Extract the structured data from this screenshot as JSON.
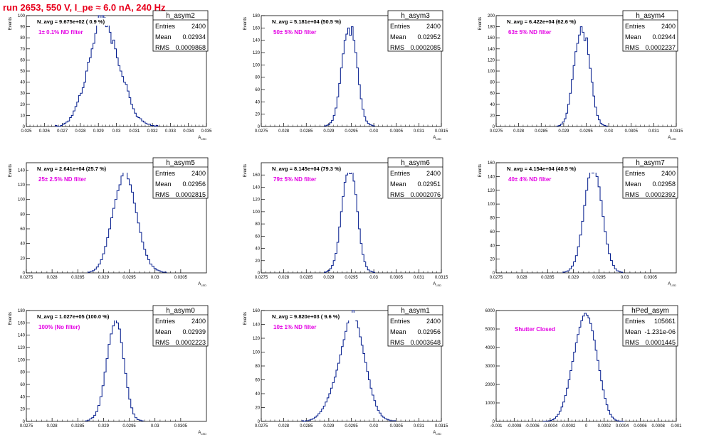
{
  "page": {
    "title": "run 2653,   550 V, I_pe ≈ 6.0 nA, 240 Hz"
  },
  "colors": {
    "title": "#e8001c",
    "annotation": "#e400e4",
    "hist_line": "#001a8c",
    "axis": "#000000"
  },
  "stats_labels": {
    "entries": "Entries",
    "mean": "Mean",
    "rms": "RMS"
  },
  "chart_data": [
    {
      "type": "bar",
      "name": "h_asym2",
      "navg": "N_avg = 9.675e+02 ( 0.9 %)",
      "annotation": "1± 0.1% ND filter",
      "entries": "2400",
      "mean": "0.02934",
      "rms": "0.0009868",
      "xlim": [
        0.025,
        0.035
      ],
      "ylim": [
        0,
        100
      ],
      "xlabel": "A_LED",
      "ylabel": "Events",
      "xticks": [
        0.025,
        0.026,
        0.027,
        0.028,
        0.029,
        0.03,
        0.031,
        0.032,
        0.033,
        0.034,
        0.035
      ],
      "xtick_labels": [
        "0.025",
        "0.026",
        "0.027",
        "0.028",
        "0.029",
        "0.03",
        "0.031",
        "0.032",
        "0.033",
        "0.034",
        "0.035"
      ],
      "yticks": [
        0,
        10,
        20,
        30,
        40,
        50,
        60,
        70,
        80,
        90,
        100
      ],
      "ytick_labels": [
        "0",
        "10",
        "20",
        "30",
        "40",
        "50",
        "60",
        "70",
        "80",
        "90",
        "100"
      ],
      "bins": {
        "start": 0.0266,
        "width": 0.0001,
        "values": [
          1,
          0,
          0,
          1,
          2,
          3,
          4,
          5,
          8,
          10,
          14,
          18,
          22,
          28,
          30,
          35,
          40,
          50,
          58,
          62,
          70,
          75,
          84,
          92,
          100,
          95,
          100,
          98,
          90,
          94,
          85,
          75,
          78,
          70,
          62,
          55,
          50,
          45,
          40,
          38,
          32,
          26,
          20,
          16,
          12,
          9,
          8,
          7,
          5,
          4,
          3,
          2,
          2,
          1,
          1,
          0,
          1
        ]
      }
    },
    {
      "type": "bar",
      "name": "h_asym3",
      "navg": "N_avg = 5.181e+04 (50.5 %)",
      "annotation": "50± 5% ND filter",
      "entries": "2400",
      "mean": "0.02952",
      "rms": "0.0002085",
      "xlim": [
        0.0275,
        0.0315
      ],
      "ylim": [
        0,
        180
      ],
      "xlabel": "A_LED",
      "ylabel": "Events",
      "xticks": [
        0.0275,
        0.028,
        0.0285,
        0.029,
        0.0295,
        0.03,
        0.0305,
        0.031,
        0.0315
      ],
      "xtick_labels": [
        "0.0275",
        "0.028",
        "0.0285",
        "0.029",
        "0.0295",
        "0.03",
        "0.0305",
        "0.031",
        "0.0315"
      ],
      "yticks": [
        0,
        20,
        40,
        60,
        80,
        100,
        120,
        140,
        160,
        180
      ],
      "ytick_labels": [
        "0",
        "20",
        "40",
        "60",
        "80",
        "100",
        "120",
        "140",
        "160",
        "180"
      ],
      "bins": {
        "start": 0.0289,
        "width": 4e-05,
        "values": [
          1,
          2,
          3,
          6,
          10,
          18,
          30,
          48,
          70,
          95,
          118,
          140,
          150,
          160,
          148,
          162,
          140,
          120,
          95,
          68,
          45,
          28,
          16,
          9,
          5,
          3,
          2,
          1
        ]
      }
    },
    {
      "type": "bar",
      "name": "h_asym4",
      "navg": "N_avg = 6.422e+04 (62.6 %)",
      "annotation": "63± 5% ND filter",
      "entries": "2400",
      "mean": "0.02944",
      "rms": "0.0002237",
      "xlim": [
        0.0275,
        0.0315
      ],
      "ylim": [
        0,
        200
      ],
      "xlabel": "A_LED",
      "ylabel": "Events",
      "xticks": [
        0.0275,
        0.028,
        0.0285,
        0.029,
        0.0295,
        0.03,
        0.0305,
        0.031,
        0.0315
      ],
      "xtick_labels": [
        "0.0275",
        "0.028",
        "0.0285",
        "0.029",
        "0.0295",
        "0.03",
        "0.0305",
        "0.031",
        "0.0315"
      ],
      "yticks": [
        0,
        20,
        40,
        60,
        80,
        100,
        120,
        140,
        160,
        180,
        200
      ],
      "ytick_labels": [
        "0",
        "20",
        "40",
        "60",
        "80",
        "100",
        "120",
        "140",
        "160",
        "180",
        "200"
      ],
      "bins": {
        "start": 0.02885,
        "width": 4e-05,
        "values": [
          1,
          2,
          4,
          8,
          14,
          24,
          40,
          60,
          85,
          110,
          135,
          150,
          165,
          180,
          170,
          155,
          160,
          130,
          105,
          80,
          55,
          35,
          20,
          12,
          6,
          3,
          2,
          1
        ]
      }
    },
    {
      "type": "bar",
      "name": "h_asym5",
      "navg": "N_avg = 2.641e+04 (25.7 %)",
      "annotation": "25± 2.5% ND filter",
      "entries": "2400",
      "mean": "0.02956",
      "rms": "0.0002815",
      "xlim": [
        0.0275,
        0.031
      ],
      "ylim": [
        0,
        150
      ],
      "xlabel": "A_LED",
      "ylabel": "Events",
      "xticks": [
        0.0275,
        0.028,
        0.0285,
        0.029,
        0.0295,
        0.03,
        0.0305
      ],
      "xtick_labels": [
        "0.0275",
        "0.028",
        "0.0285",
        "0.029",
        "0.0295",
        "0.03",
        "0.0305"
      ],
      "yticks": [
        0,
        20,
        40,
        60,
        80,
        100,
        120,
        140
      ],
      "ytick_labels": [
        "0",
        "20",
        "40",
        "60",
        "80",
        "100",
        "120",
        "140"
      ],
      "bins": {
        "start": 0.0287,
        "width": 4e-05,
        "values": [
          1,
          2,
          3,
          5,
          8,
          12,
          18,
          26,
          36,
          48,
          60,
          75,
          88,
          100,
          112,
          120,
          132,
          145,
          140,
          128,
          120,
          110,
          95,
          82,
          68,
          55,
          42,
          32,
          24,
          18,
          12,
          9,
          6,
          4,
          3,
          2,
          1,
          1
        ]
      }
    },
    {
      "type": "bar",
      "name": "h_asym6",
      "navg": "N_avg = 8.145e+04 (79.3 %)",
      "annotation": "79± 5% ND filter",
      "entries": "2400",
      "mean": "0.02951",
      "rms": "0.0002076",
      "xlim": [
        0.0275,
        0.0315
      ],
      "ylim": [
        0,
        180
      ],
      "xlabel": "A_LED",
      "ylabel": "Events",
      "xticks": [
        0.0275,
        0.028,
        0.0285,
        0.029,
        0.0295,
        0.03,
        0.0305,
        0.031,
        0.0315
      ],
      "xtick_labels": [
        "0.0275",
        "0.028",
        "0.0285",
        "0.029",
        "0.0295",
        "0.03",
        "0.0305",
        "0.031",
        "0.0315"
      ],
      "yticks": [
        0,
        20,
        40,
        60,
        80,
        100,
        120,
        140,
        160
      ],
      "ytick_labels": [
        "0",
        "20",
        "40",
        "60",
        "80",
        "100",
        "120",
        "140",
        "160"
      ],
      "bins": {
        "start": 0.0289,
        "width": 4e-05,
        "values": [
          1,
          2,
          4,
          7,
          12,
          20,
          32,
          50,
          75,
          100,
          125,
          148,
          160,
          170,
          162,
          172,
          150,
          128,
          100,
          72,
          48,
          30,
          18,
          10,
          5,
          3,
          2,
          1
        ]
      }
    },
    {
      "type": "bar",
      "name": "h_asym7",
      "navg": "N_avg = 4.154e+04 (40.5 %)",
      "annotation": "40± 4% ND filter",
      "entries": "2400",
      "mean": "0.02958",
      "rms": "0.0002392",
      "xlim": [
        0.0275,
        0.031
      ],
      "ylim": [
        0,
        160
      ],
      "xlabel": "A_LED",
      "ylabel": "Events",
      "xticks": [
        0.0275,
        0.028,
        0.0285,
        0.029,
        0.0295,
        0.03,
        0.0305
      ],
      "xtick_labels": [
        "0.0275",
        "0.028",
        "0.0285",
        "0.029",
        "0.0295",
        "0.03",
        "0.0305"
      ],
      "yticks": [
        0,
        20,
        40,
        60,
        80,
        100,
        120,
        140,
        160
      ],
      "ytick_labels": [
        "0",
        "20",
        "40",
        "60",
        "80",
        "100",
        "120",
        "140",
        "160"
      ],
      "bins": {
        "start": 0.0288,
        "width": 4e-05,
        "values": [
          1,
          2,
          3,
          6,
          10,
          16,
          25,
          38,
          55,
          75,
          98,
          120,
          138,
          150,
          145,
          152,
          140,
          125,
          105,
          82,
          60,
          42,
          28,
          18,
          11,
          6,
          3,
          2,
          1
        ]
      }
    },
    {
      "type": "bar",
      "name": "h_asym0",
      "navg": "N_avg = 1.027e+05 (100.0 %)",
      "annotation": "100% (No filter)",
      "entries": "2400",
      "mean": "0.02939",
      "rms": "0.0002223",
      "xlim": [
        0.0275,
        0.031
      ],
      "ylim": [
        0,
        180
      ],
      "xlabel": "A_LED",
      "ylabel": "Events",
      "xticks": [
        0.0275,
        0.028,
        0.0285,
        0.029,
        0.0295,
        0.03,
        0.0305
      ],
      "xtick_labels": [
        "0.0275",
        "0.028",
        "0.0285",
        "0.029",
        "0.0295",
        "0.03",
        "0.0305"
      ],
      "yticks": [
        0,
        20,
        40,
        60,
        80,
        100,
        120,
        140,
        160,
        180
      ],
      "ytick_labels": [
        "0",
        "20",
        "40",
        "60",
        "80",
        "100",
        "120",
        "140",
        "160",
        "180"
      ],
      "bins": {
        "start": 0.02865,
        "width": 4e-05,
        "values": [
          1,
          2,
          4,
          6,
          10,
          16,
          26,
          40,
          58,
          80,
          102,
          125,
          142,
          155,
          168,
          160,
          150,
          128,
          102,
          78,
          55,
          36,
          22,
          12,
          6,
          3,
          2,
          1
        ]
      }
    },
    {
      "type": "bar",
      "name": "h_asym1",
      "navg": "N_avg = 9.820e+03 ( 9.6 %)",
      "annotation": "10± 1% ND filter",
      "entries": "2400",
      "mean": "0.02956",
      "rms": "0.0003648",
      "xlim": [
        0.0275,
        0.0315
      ],
      "ylim": [
        0,
        160
      ],
      "xlabel": "A_LED",
      "ylabel": "Events",
      "xticks": [
        0.0275,
        0.028,
        0.0285,
        0.029,
        0.0295,
        0.03,
        0.0305,
        0.031,
        0.0315
      ],
      "xtick_labels": [
        "0.0275",
        "0.028",
        "0.0285",
        "0.029",
        "0.0295",
        "0.03",
        "0.0305",
        "0.031",
        "0.0315"
      ],
      "yticks": [
        0,
        20,
        40,
        60,
        80,
        100,
        120,
        140,
        160
      ],
      "ytick_labels": [
        "0",
        "20",
        "40",
        "60",
        "80",
        "100",
        "120",
        "140",
        "160"
      ],
      "bins": {
        "start": 0.0284,
        "width": 4e-05,
        "values": [
          1,
          0,
          1,
          1,
          2,
          3,
          4,
          6,
          8,
          11,
          14,
          18,
          22,
          28,
          34,
          40,
          48,
          56,
          64,
          74,
          84,
          96,
          108,
          118,
          130,
          142,
          150,
          155,
          160,
          152,
          145,
          135,
          122,
          110,
          98,
          85,
          72,
          60,
          48,
          38,
          30,
          22,
          16,
          12,
          8,
          6,
          4,
          3,
          2,
          1,
          1,
          1
        ]
      }
    },
    {
      "type": "bar",
      "name": "hPed_asym",
      "navg": "",
      "annotation": "Shutter Closed",
      "entries": "105661",
      "mean": "-1.231e-06",
      "rms": "0.0001445",
      "xlim": [
        -0.001,
        0.001
      ],
      "ylim": [
        0,
        6000
      ],
      "xlabel": "",
      "ylabel": "",
      "xticks": [
        -0.001,
        -0.0008,
        -0.0006,
        -0.0004,
        -0.0002,
        0,
        0.0002,
        0.0004,
        0.0006,
        0.0008,
        0.001
      ],
      "xtick_labels": [
        "-0.001",
        "-0.0008",
        "-0.0006",
        "-0.0004",
        "-0.0002",
        "0",
        "0.0002",
        "0.0004",
        "0.0006",
        "0.0008",
        "0.001"
      ],
      "yticks": [
        0,
        1000,
        2000,
        3000,
        4000,
        5000,
        6000
      ],
      "ytick_labels": [
        "0",
        "1000",
        "2000",
        "3000",
        "4000",
        "5000",
        "6000"
      ],
      "bins": {
        "start": -0.00048,
        "width": 2e-05,
        "values": [
          5,
          10,
          20,
          35,
          60,
          100,
          160,
          250,
          380,
          550,
          780,
          1050,
          1400,
          1800,
          2250,
          2750,
          3250,
          3750,
          4250,
          4700,
          5100,
          5450,
          5700,
          5850,
          5750,
          5600,
          5300,
          4900,
          4400,
          3850,
          3300,
          2750,
          2200,
          1700,
          1250,
          900,
          600,
          380,
          230,
          130,
          70,
          35,
          15,
          6,
          2
        ]
      }
    }
  ]
}
